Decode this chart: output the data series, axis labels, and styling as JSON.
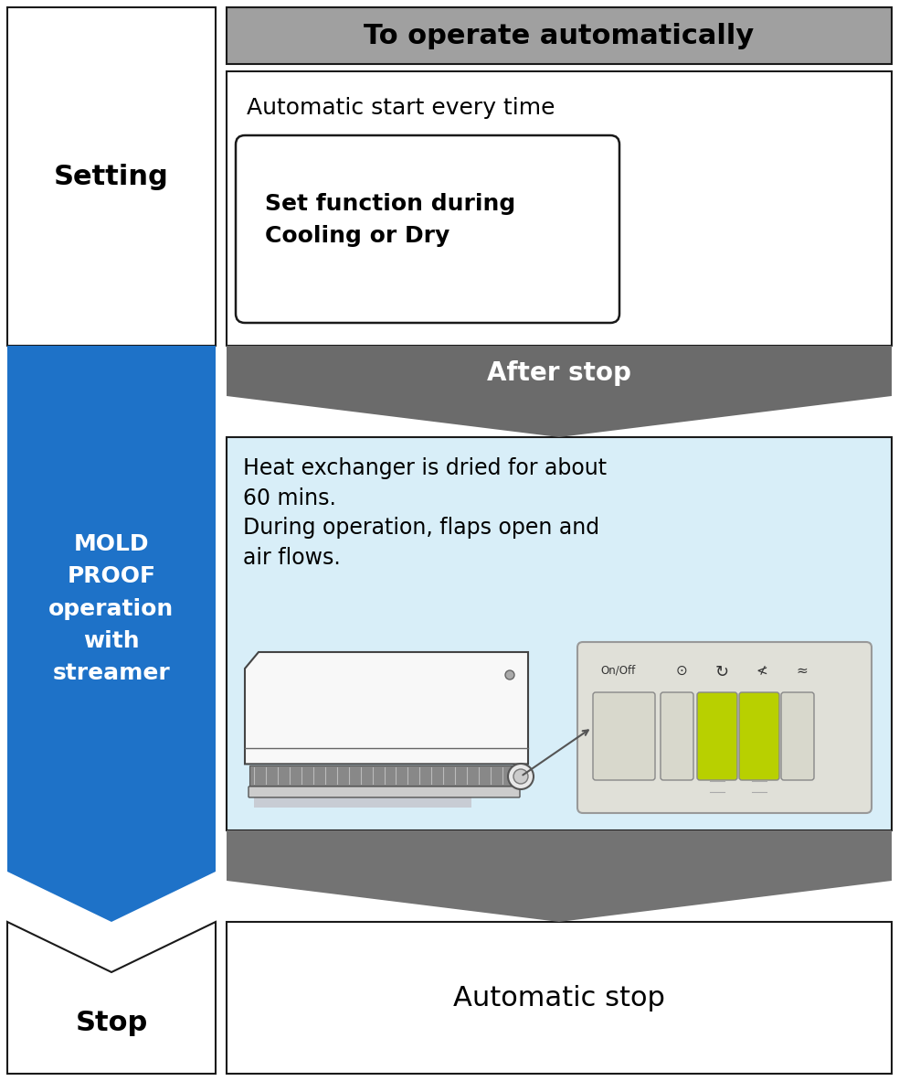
{
  "title_text": "To operate automatically",
  "title_bg": "#a0a0a0",
  "title_color": "#000000",
  "setting_label": "Setting",
  "mold_proof_label": "MOLD\nPROOF\noperation\nwith\nstreamer",
  "mold_proof_bg": "#1e72c8",
  "mold_proof_color": "#ffffff",
  "stop_label": "Stop",
  "auto_start_text": "Automatic start every time",
  "set_function_text": "Set function during\nCooling or Dry",
  "after_stop_text": "After stop",
  "after_stop_bg": "#6b6b6b",
  "after_stop_color": "#ffffff",
  "heat_exchanger_text": "Heat exchanger is dried for about\n60 mins.\nDuring operation, flaps open and\nair flows.",
  "heat_exchanger_bg": "#d8eef8",
  "auto_stop_text": "Automatic stop",
  "arrow_color": "#737373",
  "border_color": "#1a1a1a",
  "bg_color": "#ffffff",
  "btn_yellow": "#b8d000",
  "btn_gray": "#d8d8cc",
  "rc_bg": "#e0e0d8",
  "ac_body": "#f5f5f5",
  "ac_shadow": "#c8ccd4"
}
